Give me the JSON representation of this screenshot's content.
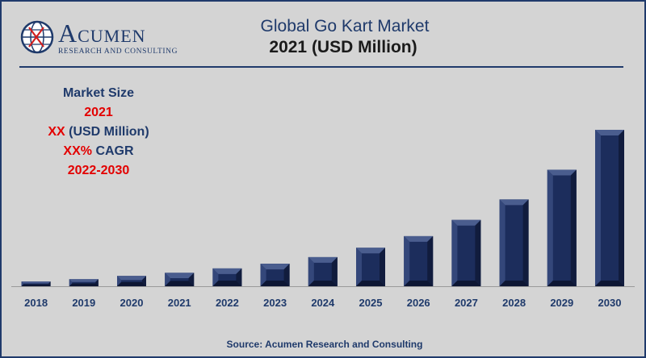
{
  "logo": {
    "brand": "Acumen",
    "tagline": "RESEARCH AND CONSULTING"
  },
  "header": {
    "title_line1": "Global Go Kart Market",
    "title_line2": "2021 (USD Million)"
  },
  "info": {
    "label": "Market Size",
    "year": "2021",
    "value_xx": "XX",
    "value_unit": " (USD Million)",
    "cagr_xx": "XX%",
    "cagr_label": " CAGR",
    "period": "2022-2030"
  },
  "colors": {
    "navy": "#1f3a6b",
    "red": "#e30000",
    "bar": "#1c2d5c",
    "background": "#d4d4d4"
  },
  "chart_data": {
    "type": "bar",
    "categories": [
      "2018",
      "2019",
      "2020",
      "2021",
      "2022",
      "2023",
      "2024",
      "2025",
      "2026",
      "2027",
      "2028",
      "2029",
      "2030"
    ],
    "values": [
      3.0,
      4.5,
      6.6,
      8.6,
      11.4,
      14.4,
      18.6,
      24.6,
      32.0,
      42.4,
      55.5,
      74.5,
      100
    ],
    "ylim": [
      0,
      100
    ],
    "grid": false,
    "legend": "none",
    "xlabel": "",
    "ylabel": ""
  },
  "footer": {
    "source": "Source: Acumen Research and Consulting"
  }
}
